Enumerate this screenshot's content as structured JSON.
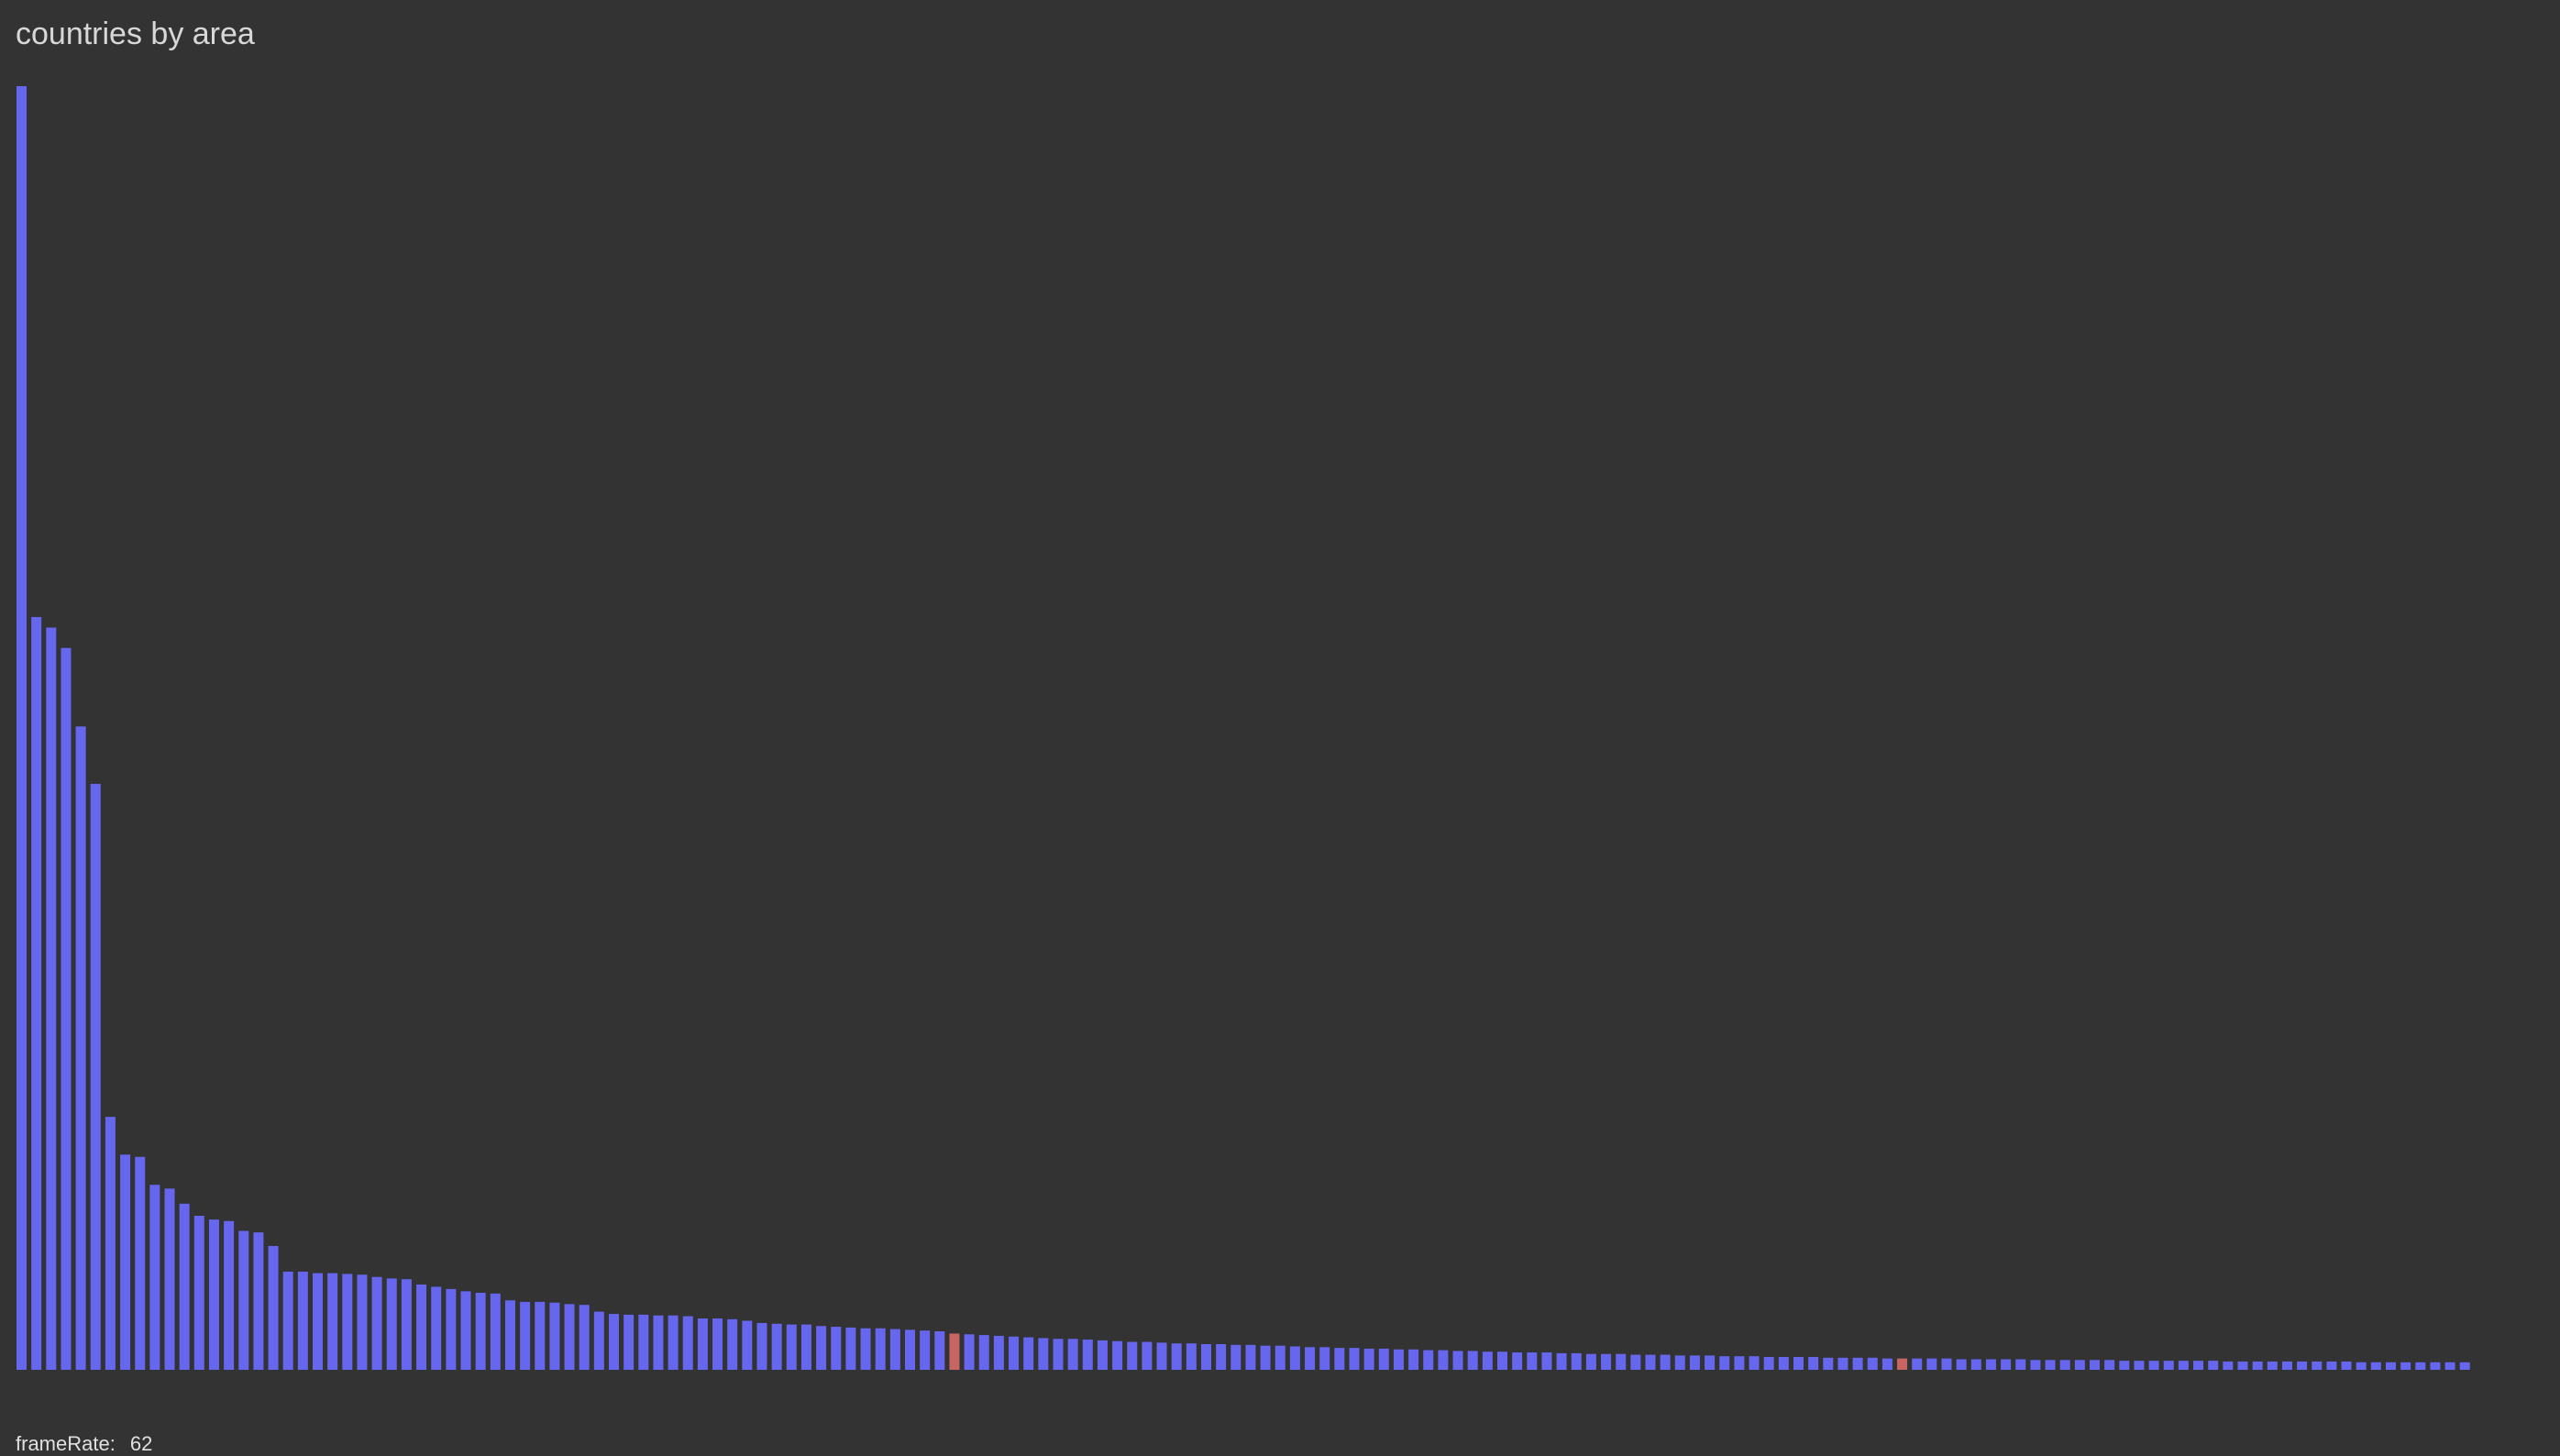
{
  "chart_data": {
    "type": "bar",
    "title": "countries by area",
    "xlabel": "",
    "ylabel": "",
    "grid": false,
    "ylim": [
      0,
      1700
    ],
    "bar_color": "#6666ee",
    "highlight_color": "#c76464",
    "highlighted_indices": [
      63,
      127
    ],
    "values": [
      1700,
      997,
      983,
      956,
      852,
      776,
      335,
      285,
      282,
      245,
      240,
      220,
      204,
      199,
      197,
      184,
      182,
      164,
      130,
      130,
      128,
      128,
      127,
      126,
      123,
      121,
      120,
      113,
      110,
      107,
      104,
      102,
      101,
      92,
      90,
      90,
      89,
      87,
      86,
      77,
      74,
      73,
      73,
      72,
      72,
      71,
      68,
      68,
      67,
      65,
      62,
      61,
      60,
      60,
      58,
      57,
      56,
      55,
      55,
      54,
      53,
      52,
      51,
      48,
      47,
      46,
      45,
      44,
      43,
      42,
      41,
      41,
      40,
      39,
      38,
      37,
      37,
      36,
      35,
      35,
      34,
      34,
      33,
      33,
      32,
      32,
      31,
      30,
      30,
      29,
      29,
      28,
      28,
      27,
      27,
      26,
      26,
      25,
      25,
      24,
      24,
      23,
      23,
      23,
      22,
      22,
      21,
      21,
      21,
      20,
      20,
      20,
      19,
      19,
      19,
      18,
      18,
      18,
      17,
      17,
      17,
      17,
      16,
      16,
      16,
      16,
      15,
      15,
      15,
      15,
      15,
      14,
      14,
      14,
      14,
      14,
      13,
      13,
      13,
      13,
      13,
      13,
      12,
      12,
      12,
      12,
      12,
      12,
      12,
      11,
      11,
      11,
      11,
      11,
      11,
      11,
      11,
      11,
      10,
      10,
      10,
      10,
      10,
      10,
      10,
      10
    ]
  },
  "status": {
    "fps_label": "frameRate:",
    "fps_value": "62"
  }
}
